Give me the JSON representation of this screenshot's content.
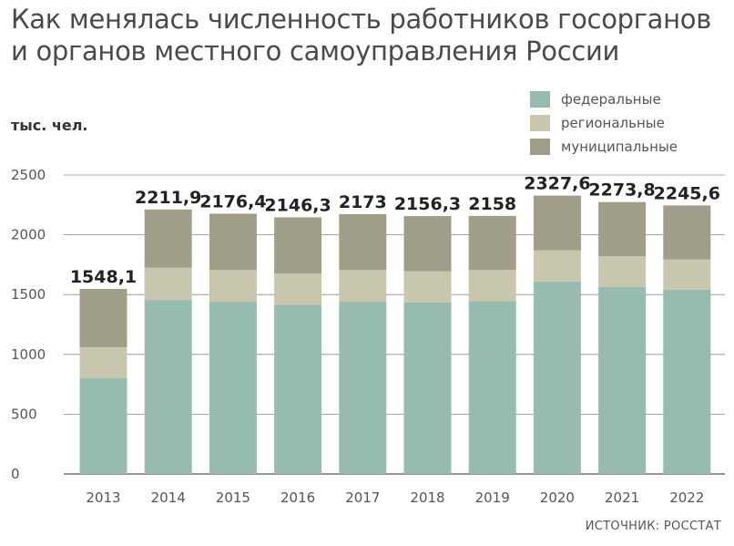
{
  "title": "Как менялась численность работников госорганов и органов местного самоуправления России",
  "subtitle": "тыс. чел.",
  "source": "ИСТОЧНИК: РОССТАТ",
  "legend": [
    {
      "label": "федеральные",
      "color": "#97bbaf"
    },
    {
      "label": "региональные",
      "color": "#c8c7ad"
    },
    {
      "label": "муниципальные",
      "color": "#a09e89"
    }
  ],
  "chart_data": {
    "type": "bar",
    "stacked": true,
    "title": "Как менялась численность работников госорганов и органов местного самоуправления России",
    "ylabel": "тыс. чел.",
    "ylim": [
      0,
      2500
    ],
    "yticks": [
      0,
      500,
      1000,
      1500,
      2000,
      2500
    ],
    "grid": true,
    "legend_position": "top-right",
    "categories": [
      "2013",
      "2014",
      "2015",
      "2016",
      "2017",
      "2018",
      "2019",
      "2020",
      "2021",
      "2022"
    ],
    "totals": [
      "1548,1",
      "2211,9",
      "2176,4",
      "2146,3",
      "2173",
      "2156,3",
      "2158",
      "2327,6",
      "2273,8",
      "2245,6"
    ],
    "series": [
      {
        "name": "федеральные",
        "color": "#97bbaf",
        "values": [
          800,
          1455,
          1440,
          1415,
          1440,
          1435,
          1445,
          1610,
          1565,
          1540
        ]
      },
      {
        "name": "региональные",
        "color": "#c8c7ad",
        "values": [
          260,
          270,
          265,
          260,
          265,
          260,
          260,
          260,
          255,
          255
        ]
      },
      {
        "name": "муниципальные",
        "color": "#a09e89",
        "values": [
          488.1,
          486.9,
          471.4,
          471.3,
          468,
          461.3,
          453,
          457.6,
          453.8,
          450.6
        ]
      }
    ]
  }
}
